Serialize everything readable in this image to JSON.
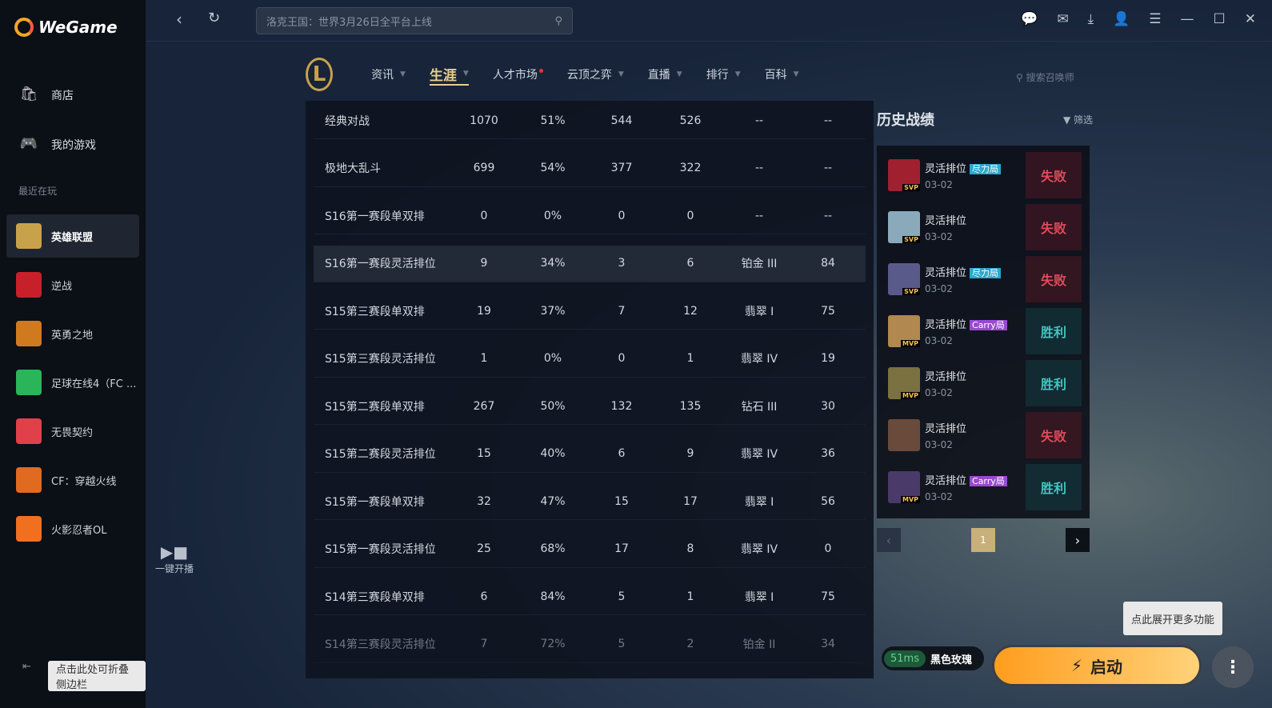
{
  "app": {
    "name": "WeGame"
  },
  "sidebar": {
    "items": [
      {
        "label": "商店",
        "icon": "shop-bag-icon"
      },
      {
        "label": "我的游戏",
        "icon": "gamepad-icon"
      }
    ],
    "recent_label": "最近在玩",
    "games": [
      {
        "label": "英雄联盟",
        "color": "#c8a24a"
      },
      {
        "label": "逆战",
        "color": "#c8202a"
      },
      {
        "label": "英勇之地",
        "color": "#d07a20"
      },
      {
        "label": "足球在线4（FC ...",
        "color": "#2bb55a"
      },
      {
        "label": "无畏契约",
        "color": "#e0404a"
      },
      {
        "label": "CF：穿越火线",
        "color": "#e06a20"
      },
      {
        "label": "火影忍者OL",
        "color": "#f07020"
      }
    ],
    "collapse_tip": "点击此处可折叠侧边栏"
  },
  "topbar": {
    "search_placeholder": "洛克王国：世界3月26日全平台上线"
  },
  "lol_nav": {
    "tabs": [
      {
        "label": "资讯"
      },
      {
        "label": "生涯",
        "active": true
      },
      {
        "label": "人才市场"
      },
      {
        "label": "云顶之弈"
      },
      {
        "label": "直播"
      },
      {
        "label": "排行"
      },
      {
        "label": "百科"
      }
    ],
    "search_placeholder": "搜索召唤师"
  },
  "live_label": "一键开播",
  "career_table": {
    "rows": [
      [
        "经典对战",
        "1070",
        "51%",
        "544",
        "526",
        "--",
        "--"
      ],
      [
        "极地大乱斗",
        "699",
        "54%",
        "377",
        "322",
        "--",
        "--"
      ],
      [
        "S16第一赛段单双排",
        "0",
        "0%",
        "0",
        "0",
        "--",
        "--"
      ],
      [
        "S16第一赛段灵活排位",
        "9",
        "34%",
        "3",
        "6",
        "铂金 III",
        "84"
      ],
      [
        "S15第三赛段单双排",
        "19",
        "37%",
        "7",
        "12",
        "翡翠 I",
        "75"
      ],
      [
        "S15第三赛段灵活排位",
        "1",
        "0%",
        "0",
        "1",
        "翡翠 IV",
        "19"
      ],
      [
        "S15第二赛段单双排",
        "267",
        "50%",
        "132",
        "135",
        "钻石 III",
        "30"
      ],
      [
        "S15第二赛段灵活排位",
        "15",
        "40%",
        "6",
        "9",
        "翡翠 IV",
        "36"
      ],
      [
        "S15第一赛段单双排",
        "32",
        "47%",
        "15",
        "17",
        "翡翠 I",
        "56"
      ],
      [
        "S15第一赛段灵活排位",
        "25",
        "68%",
        "17",
        "8",
        "翡翠 IV",
        "0"
      ],
      [
        "S14第三赛段单双排",
        "6",
        "84%",
        "5",
        "1",
        "翡翠 I",
        "75"
      ],
      [
        "S14第三赛段灵活排位",
        "7",
        "72%",
        "5",
        "2",
        "铂金 II",
        "34"
      ]
    ]
  },
  "history": {
    "title": "历史战绩",
    "filter": "筛选",
    "page": "1",
    "matches": [
      {
        "mode": "灵活排位",
        "tag": "尽力局",
        "badge": "SVP",
        "date": "03-02",
        "result": "失败",
        "win": false,
        "color": "#a02030"
      },
      {
        "mode": "灵活排位",
        "tag": "",
        "badge": "SVP",
        "date": "03-02",
        "result": "失败",
        "win": false,
        "color": "#8aaabb"
      },
      {
        "mode": "灵活排位",
        "tag": "尽力局",
        "badge": "SVP",
        "date": "03-02",
        "result": "失败",
        "win": false,
        "color": "#5a5a8a"
      },
      {
        "mode": "灵活排位",
        "tag": "Carry局",
        "badge": "MVP",
        "date": "03-02",
        "result": "胜利",
        "win": true,
        "color": "#b08850"
      },
      {
        "mode": "灵活排位",
        "tag": "",
        "badge": "MVP",
        "date": "03-02",
        "result": "胜利",
        "win": true,
        "color": "#7a7040"
      },
      {
        "mode": "灵活排位",
        "tag": "",
        "badge": "",
        "date": "03-02",
        "result": "失败",
        "win": false,
        "color": "#6a4a3a"
      },
      {
        "mode": "灵活排位",
        "tag": "Carry局",
        "badge": "MVP",
        "date": "03-02",
        "result": "胜利",
        "win": true,
        "color": "#4a3a6a"
      }
    ]
  },
  "launch": {
    "ping": "51ms",
    "server": "黑色玫瑰",
    "label": "启动",
    "more_tip": "点此展开更多功能"
  },
  "colors": {
    "accent": "#ffa42a",
    "win": "#3fc8c0",
    "loss": "#e24a5c",
    "tag_effort": "#2aa8d0",
    "tag_carry": "#9a4ad0"
  }
}
